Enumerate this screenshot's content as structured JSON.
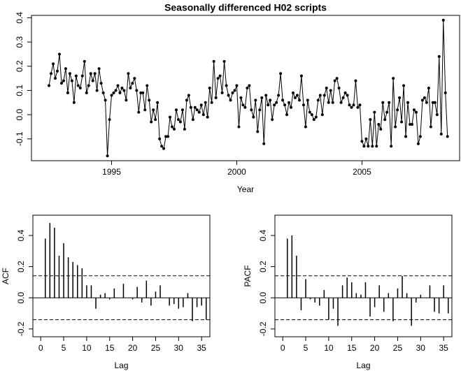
{
  "chart_data": [
    {
      "type": "line",
      "title": "Seasonally differenced H02 scripts",
      "x_label": "Year",
      "color": "#000000",
      "x": [
        1992.5,
        1992.583,
        1992.667,
        1992.75,
        1992.833,
        1992.917,
        1993.0,
        1993.083,
        1993.167,
        1993.25,
        1993.333,
        1993.417,
        1993.5,
        1993.583,
        1993.667,
        1993.75,
        1993.833,
        1993.917,
        1994.0,
        1994.083,
        1994.167,
        1994.25,
        1994.333,
        1994.417,
        1994.5,
        1994.583,
        1994.667,
        1994.75,
        1994.833,
        1994.917,
        1995.0,
        1995.083,
        1995.167,
        1995.25,
        1995.333,
        1995.417,
        1995.5,
        1995.583,
        1995.667,
        1995.75,
        1995.833,
        1995.917,
        1996.0,
        1996.083,
        1996.167,
        1996.25,
        1996.333,
        1996.417,
        1996.5,
        1996.583,
        1996.667,
        1996.75,
        1996.833,
        1996.917,
        1997.0,
        1997.083,
        1997.167,
        1997.25,
        1997.333,
        1997.417,
        1997.5,
        1997.583,
        1997.667,
        1997.75,
        1997.833,
        1997.917,
        1998.0,
        1998.083,
        1998.167,
        1998.25,
        1998.333,
        1998.417,
        1998.5,
        1998.583,
        1998.667,
        1998.75,
        1998.833,
        1998.917,
        1999.0,
        1999.083,
        1999.167,
        1999.25,
        1999.333,
        1999.417,
        1999.5,
        1999.583,
        1999.667,
        1999.75,
        1999.833,
        1999.917,
        2000.0,
        2000.083,
        2000.167,
        2000.25,
        2000.333,
        2000.417,
        2000.5,
        2000.583,
        2000.667,
        2000.75,
        2000.833,
        2000.917,
        2001.0,
        2001.083,
        2001.167,
        2001.25,
        2001.333,
        2001.417,
        2001.5,
        2001.583,
        2001.667,
        2001.75,
        2001.833,
        2001.917,
        2002.0,
        2002.083,
        2002.167,
        2002.25,
        2002.333,
        2002.417,
        2002.5,
        2002.583,
        2002.667,
        2002.75,
        2002.833,
        2002.917,
        2003.0,
        2003.083,
        2003.167,
        2003.25,
        2003.333,
        2003.417,
        2003.5,
        2003.583,
        2003.667,
        2003.75,
        2003.833,
        2003.917,
        2004.0,
        2004.083,
        2004.167,
        2004.25,
        2004.333,
        2004.417,
        2004.5,
        2004.583,
        2004.667,
        2004.75,
        2004.833,
        2004.917,
        2005.0,
        2005.083,
        2005.167,
        2005.25,
        2005.333,
        2005.417,
        2005.5,
        2005.583,
        2005.667,
        2005.75,
        2005.833,
        2005.917,
        2006.0,
        2006.083,
        2006.167,
        2006.25,
        2006.333,
        2006.417,
        2006.5,
        2006.583,
        2006.667,
        2006.75,
        2006.833,
        2006.917,
        2007.0,
        2007.083,
        2007.167,
        2007.25,
        2007.333,
        2007.417,
        2007.5,
        2007.583,
        2007.667,
        2007.75,
        2007.833,
        2007.917,
        2008.0,
        2008.083,
        2008.167,
        2008.25,
        2008.333,
        2008.417
      ],
      "values": [
        0.12,
        0.17,
        0.21,
        0.15,
        0.18,
        0.25,
        0.13,
        0.14,
        0.19,
        0.09,
        0.17,
        0.14,
        0.05,
        0.16,
        0.12,
        0.11,
        0.16,
        0.22,
        0.09,
        0.12,
        0.17,
        0.14,
        0.17,
        0.1,
        0.19,
        0.13,
        0.09,
        0.06,
        -0.17,
        -0.02,
        0.08,
        0.09,
        0.1,
        0.12,
        0.09,
        0.11,
        0.1,
        0.06,
        0.17,
        0.11,
        0.13,
        0.15,
        0.1,
        0.01,
        0.09,
        0.09,
        0.02,
        0.12,
        0.06,
        -0.03,
        0.02,
        -0.02,
        0.05,
        -0.1,
        -0.13,
        -0.14,
        -0.09,
        -0.09,
        -0.01,
        -0.05,
        -0.06,
        0.02,
        -0.02,
        -0.03,
        0.02,
        -0.06,
        0.06,
        0.08,
        0.03,
        -0.02,
        0.03,
        0.02,
        0.01,
        0.04,
        0.0,
        0.05,
        -0.01,
        0.11,
        0.05,
        0.22,
        0.07,
        0.15,
        0.16,
        0.09,
        0.22,
        0.12,
        0.08,
        0.06,
        0.09,
        0.1,
        0.12,
        -0.05,
        0.07,
        0.04,
        0.03,
        0.11,
        0.12,
        0.02,
        -0.01,
        0.06,
        -0.07,
        0.02,
        0.07,
        -0.12,
        0.08,
        0.04,
        0.06,
        -0.02,
        0.04,
        0.05,
        0.08,
        0.17,
        0.06,
        0.04,
        0.0,
        0.05,
        0.03,
        0.09,
        0.07,
        0.08,
        0.06,
        0.16,
        0.04,
        -0.05,
        0.06,
        0.01,
        0.0,
        -0.02,
        -0.01,
        0.06,
        0.08,
        0.0,
        0.08,
        0.11,
        0.05,
        0.1,
        0.05,
        0.14,
        0.15,
        0.11,
        0.05,
        0.07,
        0.09,
        0.08,
        0.04,
        0.03,
        0.04,
        0.14,
        0.03,
        0.04,
        -0.11,
        -0.13,
        -0.1,
        -0.13,
        -0.02,
        -0.13,
        0.01,
        -0.13,
        -0.04,
        -0.06,
        0.05,
        -0.02,
        0.01,
        0.05,
        -0.13,
        0.15,
        -0.05,
        0.02,
        0.07,
        -0.03,
        0.12,
        -0.09,
        0.05,
        -0.04,
        -0.04,
        0.02,
        0.01,
        -0.12,
        -0.09,
        0.06,
        0.07,
        0.05,
        0.11,
        -0.05,
        0.05,
        0.05,
        0.0,
        0.24,
        -0.08,
        0.39,
        0.09,
        -0.09
      ],
      "xlim": [
        1991.8,
        2008.9
      ],
      "ylim": [
        -0.19,
        0.41
      ],
      "xticks": [
        1995,
        2000,
        2005
      ],
      "yticks": [
        -0.1,
        {
          "value": 0,
          "label": "0.0"
        },
        0.1,
        0.2,
        0.3,
        0.4
      ]
    },
    {
      "type": "bar",
      "x_label": "Lag",
      "y_label": "ACF",
      "color": "#000000",
      "x": [
        1,
        2,
        3,
        4,
        5,
        6,
        7,
        8,
        9,
        10,
        11,
        12,
        13,
        14,
        15,
        16,
        17,
        18,
        19,
        20,
        21,
        22,
        23,
        24,
        25,
        26,
        27,
        28,
        29,
        30,
        31,
        32,
        33,
        34,
        35,
        36
      ],
      "values": [
        0.38,
        0.48,
        0.45,
        0.27,
        0.35,
        0.26,
        0.23,
        0.21,
        0.19,
        0.08,
        0.08,
        -0.07,
        0.02,
        0.03,
        -0.01,
        0.06,
        0.0,
        0.09,
        0.0,
        -0.01,
        0.07,
        -0.03,
        0.11,
        -0.05,
        0.04,
        0.08,
        0.0,
        -0.05,
        -0.04,
        -0.07,
        -0.06,
        0.03,
        -0.15,
        -0.06,
        -0.05,
        -0.14
      ],
      "ci": [
        0.141,
        -0.141
      ],
      "xlim": [
        -1.7,
        36.8
      ],
      "ylim": [
        -0.25,
        0.53
      ],
      "xticks": [
        0,
        5,
        10,
        15,
        20,
        25,
        30,
        35
      ],
      "yticks": [
        -0.2,
        {
          "value": 0,
          "label": "0.0"
        },
        0.2,
        0.4
      ]
    },
    {
      "type": "bar",
      "x_label": "Lag",
      "y_label": "PACF",
      "color": "#000000",
      "x": [
        1,
        2,
        3,
        4,
        5,
        6,
        7,
        8,
        9,
        10,
        11,
        12,
        13,
        14,
        15,
        16,
        17,
        18,
        19,
        20,
        21,
        22,
        23,
        24,
        25,
        26,
        27,
        28,
        29,
        30,
        31,
        32,
        33,
        34,
        35,
        36
      ],
      "values": [
        0.38,
        0.4,
        0.27,
        -0.08,
        0.12,
        -0.01,
        -0.03,
        -0.05,
        0.05,
        -0.14,
        -0.07,
        -0.18,
        0.08,
        0.13,
        0.1,
        0.03,
        0.02,
        0.1,
        -0.12,
        -0.06,
        0.08,
        -0.09,
        0.03,
        -0.15,
        0.06,
        0.14,
        0.03,
        -0.18,
        -0.03,
        0.02,
        0.0,
        0.08,
        -0.09,
        -0.1,
        0.08,
        -0.1
      ],
      "ci": [
        0.141,
        -0.141
      ],
      "xlim": [
        -1.7,
        36.8
      ],
      "ylim": [
        -0.25,
        0.53
      ],
      "xticks": [
        0,
        5,
        10,
        15,
        20,
        25,
        30,
        35
      ],
      "yticks": [
        -0.2,
        {
          "value": 0,
          "label": "0.0"
        },
        0.2,
        0.4
      ]
    }
  ]
}
